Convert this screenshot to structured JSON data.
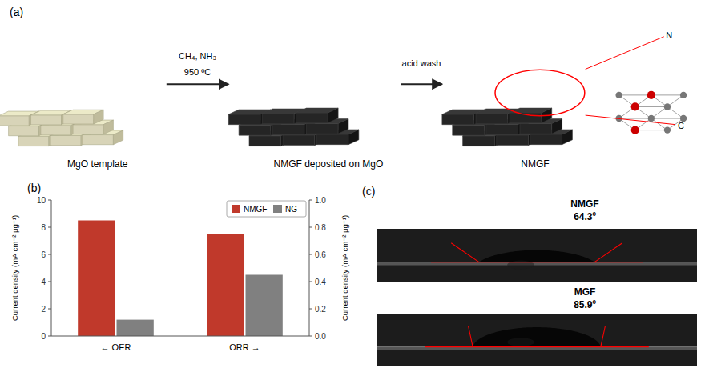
{
  "chart_data": [
    {
      "type": "diagram",
      "title": "(a)",
      "annotations": [
        "CH₄, NH₃",
        "950 ºC",
        "acid wash",
        "MgO template",
        "NMGF deposited on MgO",
        "NMGF",
        "N",
        "C"
      ]
    },
    {
      "type": "bar",
      "title": "(b)",
      "categories": [
        "← OER",
        "ORR →"
      ],
      "series": [
        {
          "name": "NMGF",
          "color": "#c0392b",
          "values": [
            8.5,
            7.5
          ]
        },
        {
          "name": "NG",
          "color": "#808080",
          "values": [
            1.2,
            4.5
          ]
        }
      ],
      "ylabel": "Current density (mA cm⁻² μg⁻¹)",
      "y2label": "Current density (mA cm⁻² μg⁻¹)",
      "ylim": [
        0,
        10
      ],
      "yticks": [
        0,
        2,
        4,
        6,
        8,
        10
      ],
      "y2lim": [
        0,
        1.0
      ],
      "y2ticks": [
        {
          "value": 0,
          "label": "0.0"
        },
        0.2,
        0.4,
        0.6,
        0.8,
        {
          "value": 1,
          "label": "1.0"
        }
      ],
      "legend": "upper right"
    },
    {
      "type": "droplet",
      "title": "(c)",
      "categories": [
        "NMGF",
        "MGF"
      ],
      "values": [
        64.3,
        85.9
      ],
      "value_labels": [
        "64.3º",
        "85.9º"
      ],
      "data_labels": true
    }
  ]
}
